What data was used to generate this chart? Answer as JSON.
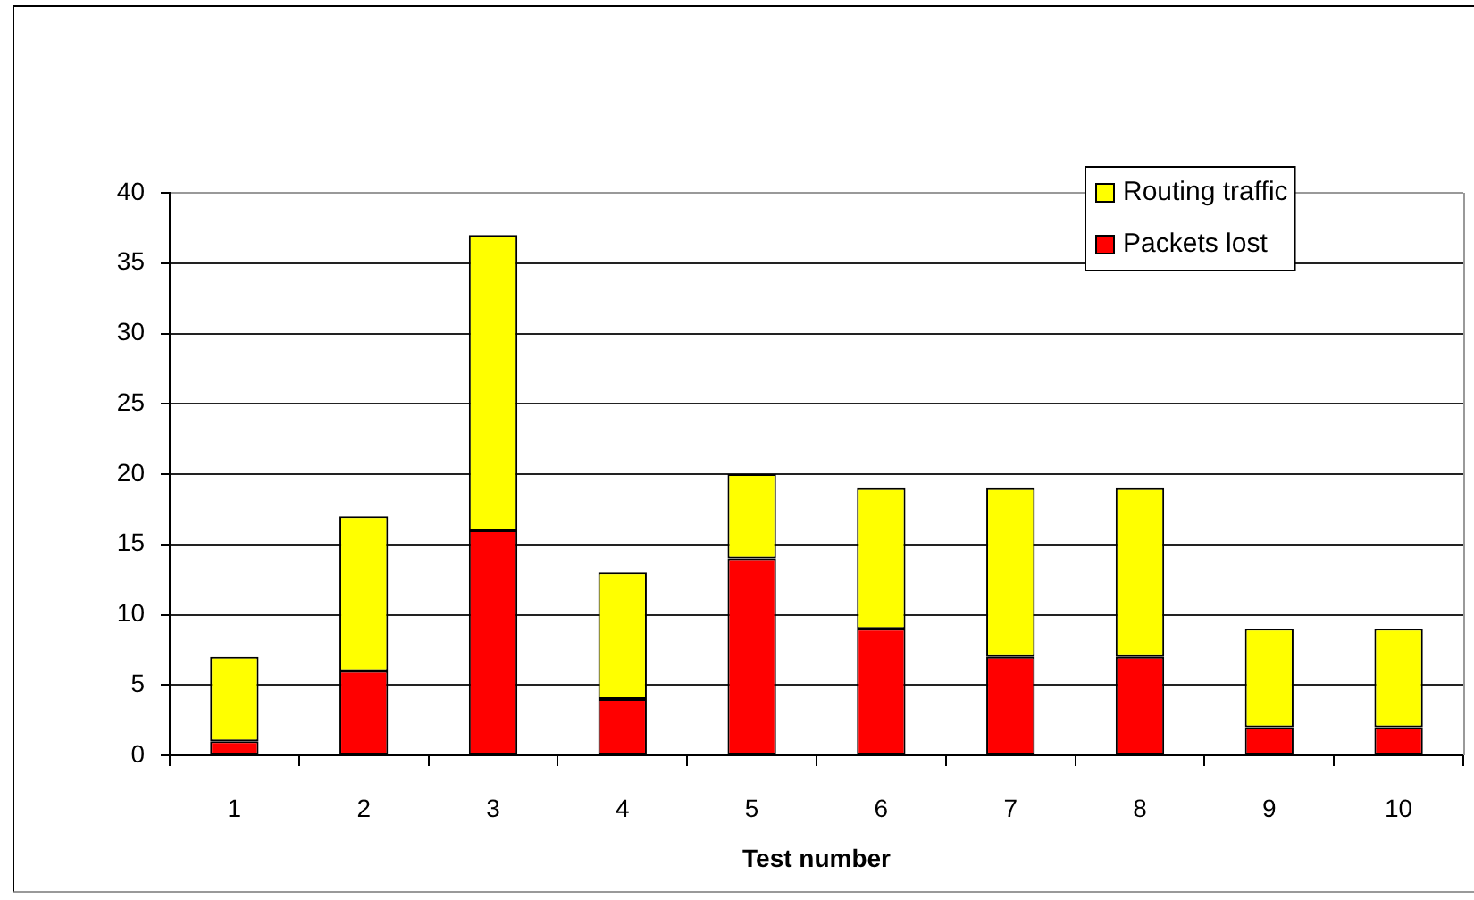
{
  "chart_data": {
    "type": "bar",
    "xlabel": "Test number",
    "categories": [
      "1",
      "2",
      "3",
      "4",
      "5",
      "6",
      "7",
      "8",
      "9",
      "10"
    ],
    "series": [
      {
        "name": "Packets lost",
        "color": "#ff0000",
        "values": [
          1,
          6,
          16,
          4,
          14,
          9,
          7,
          7,
          2,
          2
        ]
      },
      {
        "name": "Routing traffic",
        "color": "#ffff00",
        "values": [
          6,
          11,
          21,
          9,
          6,
          10,
          12,
          12,
          7,
          7
        ]
      }
    ],
    "stacked": true,
    "ylim": [
      0,
      40
    ],
    "yticks": [
      0,
      5,
      10,
      15,
      20,
      25,
      30,
      35,
      40
    ],
    "grid": "y",
    "legend": "top right"
  }
}
